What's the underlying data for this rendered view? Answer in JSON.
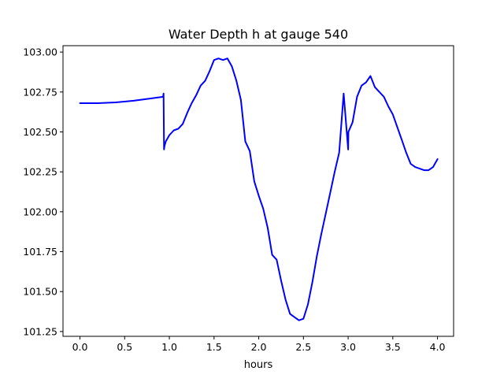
{
  "chart_data": {
    "type": "line",
    "title": "Water Depth h at gauge 540",
    "xlabel": "hours",
    "ylabel": "",
    "xlim": [
      -0.19,
      4.18
    ],
    "ylim": [
      101.22,
      103.04
    ],
    "xticks": [
      0.0,
      0.5,
      1.0,
      1.5,
      2.0,
      2.5,
      3.0,
      3.5,
      4.0
    ],
    "xtick_labels": [
      "0.0",
      "0.5",
      "1.0",
      "1.5",
      "2.0",
      "2.5",
      "3.0",
      "3.5",
      "4.0"
    ],
    "yticks": [
      101.25,
      101.5,
      101.75,
      102.0,
      102.25,
      102.5,
      102.75,
      103.0
    ],
    "ytick_labels": [
      "101.25",
      "101.50",
      "101.75",
      "102.00",
      "102.25",
      "102.50",
      "102.75",
      "103.00"
    ],
    "grid": false,
    "series": [
      {
        "name": "",
        "color": "#0000ff",
        "x": [
          0.0,
          0.2,
          0.4,
          0.6,
          0.8,
          0.93,
          0.935,
          0.94,
          0.945,
          0.96,
          1.0,
          1.05,
          1.1,
          1.15,
          1.2,
          1.25,
          1.3,
          1.35,
          1.4,
          1.45,
          1.5,
          1.55,
          1.6,
          1.65,
          1.7,
          1.75,
          1.8,
          1.85,
          1.9,
          1.95,
          2.0,
          2.05,
          2.1,
          2.15,
          2.2,
          2.25,
          2.3,
          2.35,
          2.4,
          2.45,
          2.5,
          2.55,
          2.6,
          2.65,
          2.7,
          2.75,
          2.8,
          2.85,
          2.9,
          2.95,
          3.0,
          3.001,
          3.003,
          3.05,
          3.1,
          3.15,
          3.2,
          3.25,
          3.3,
          3.35,
          3.4,
          3.45,
          3.5,
          3.55,
          3.6,
          3.65,
          3.7,
          3.75,
          3.8,
          3.85,
          3.9,
          3.95,
          4.0
        ],
        "y": [
          102.68,
          102.68,
          102.685,
          102.695,
          102.71,
          102.72,
          102.74,
          102.39,
          102.41,
          102.44,
          102.48,
          102.51,
          102.52,
          102.55,
          102.62,
          102.68,
          102.73,
          102.79,
          102.82,
          102.88,
          102.95,
          102.96,
          102.95,
          102.96,
          102.91,
          102.82,
          102.7,
          102.44,
          102.38,
          102.19,
          102.1,
          102.02,
          101.9,
          101.73,
          101.7,
          101.57,
          101.45,
          101.36,
          101.34,
          101.32,
          101.33,
          101.42,
          101.56,
          101.72,
          101.86,
          101.99,
          102.12,
          102.25,
          102.37,
          102.74,
          102.39,
          102.42,
          102.5,
          102.56,
          102.72,
          102.79,
          102.81,
          102.85,
          102.78,
          102.75,
          102.72,
          102.66,
          102.61,
          102.53,
          102.45,
          102.37,
          102.3,
          102.28,
          102.27,
          102.26,
          102.26,
          102.28,
          102.33
        ]
      }
    ]
  }
}
